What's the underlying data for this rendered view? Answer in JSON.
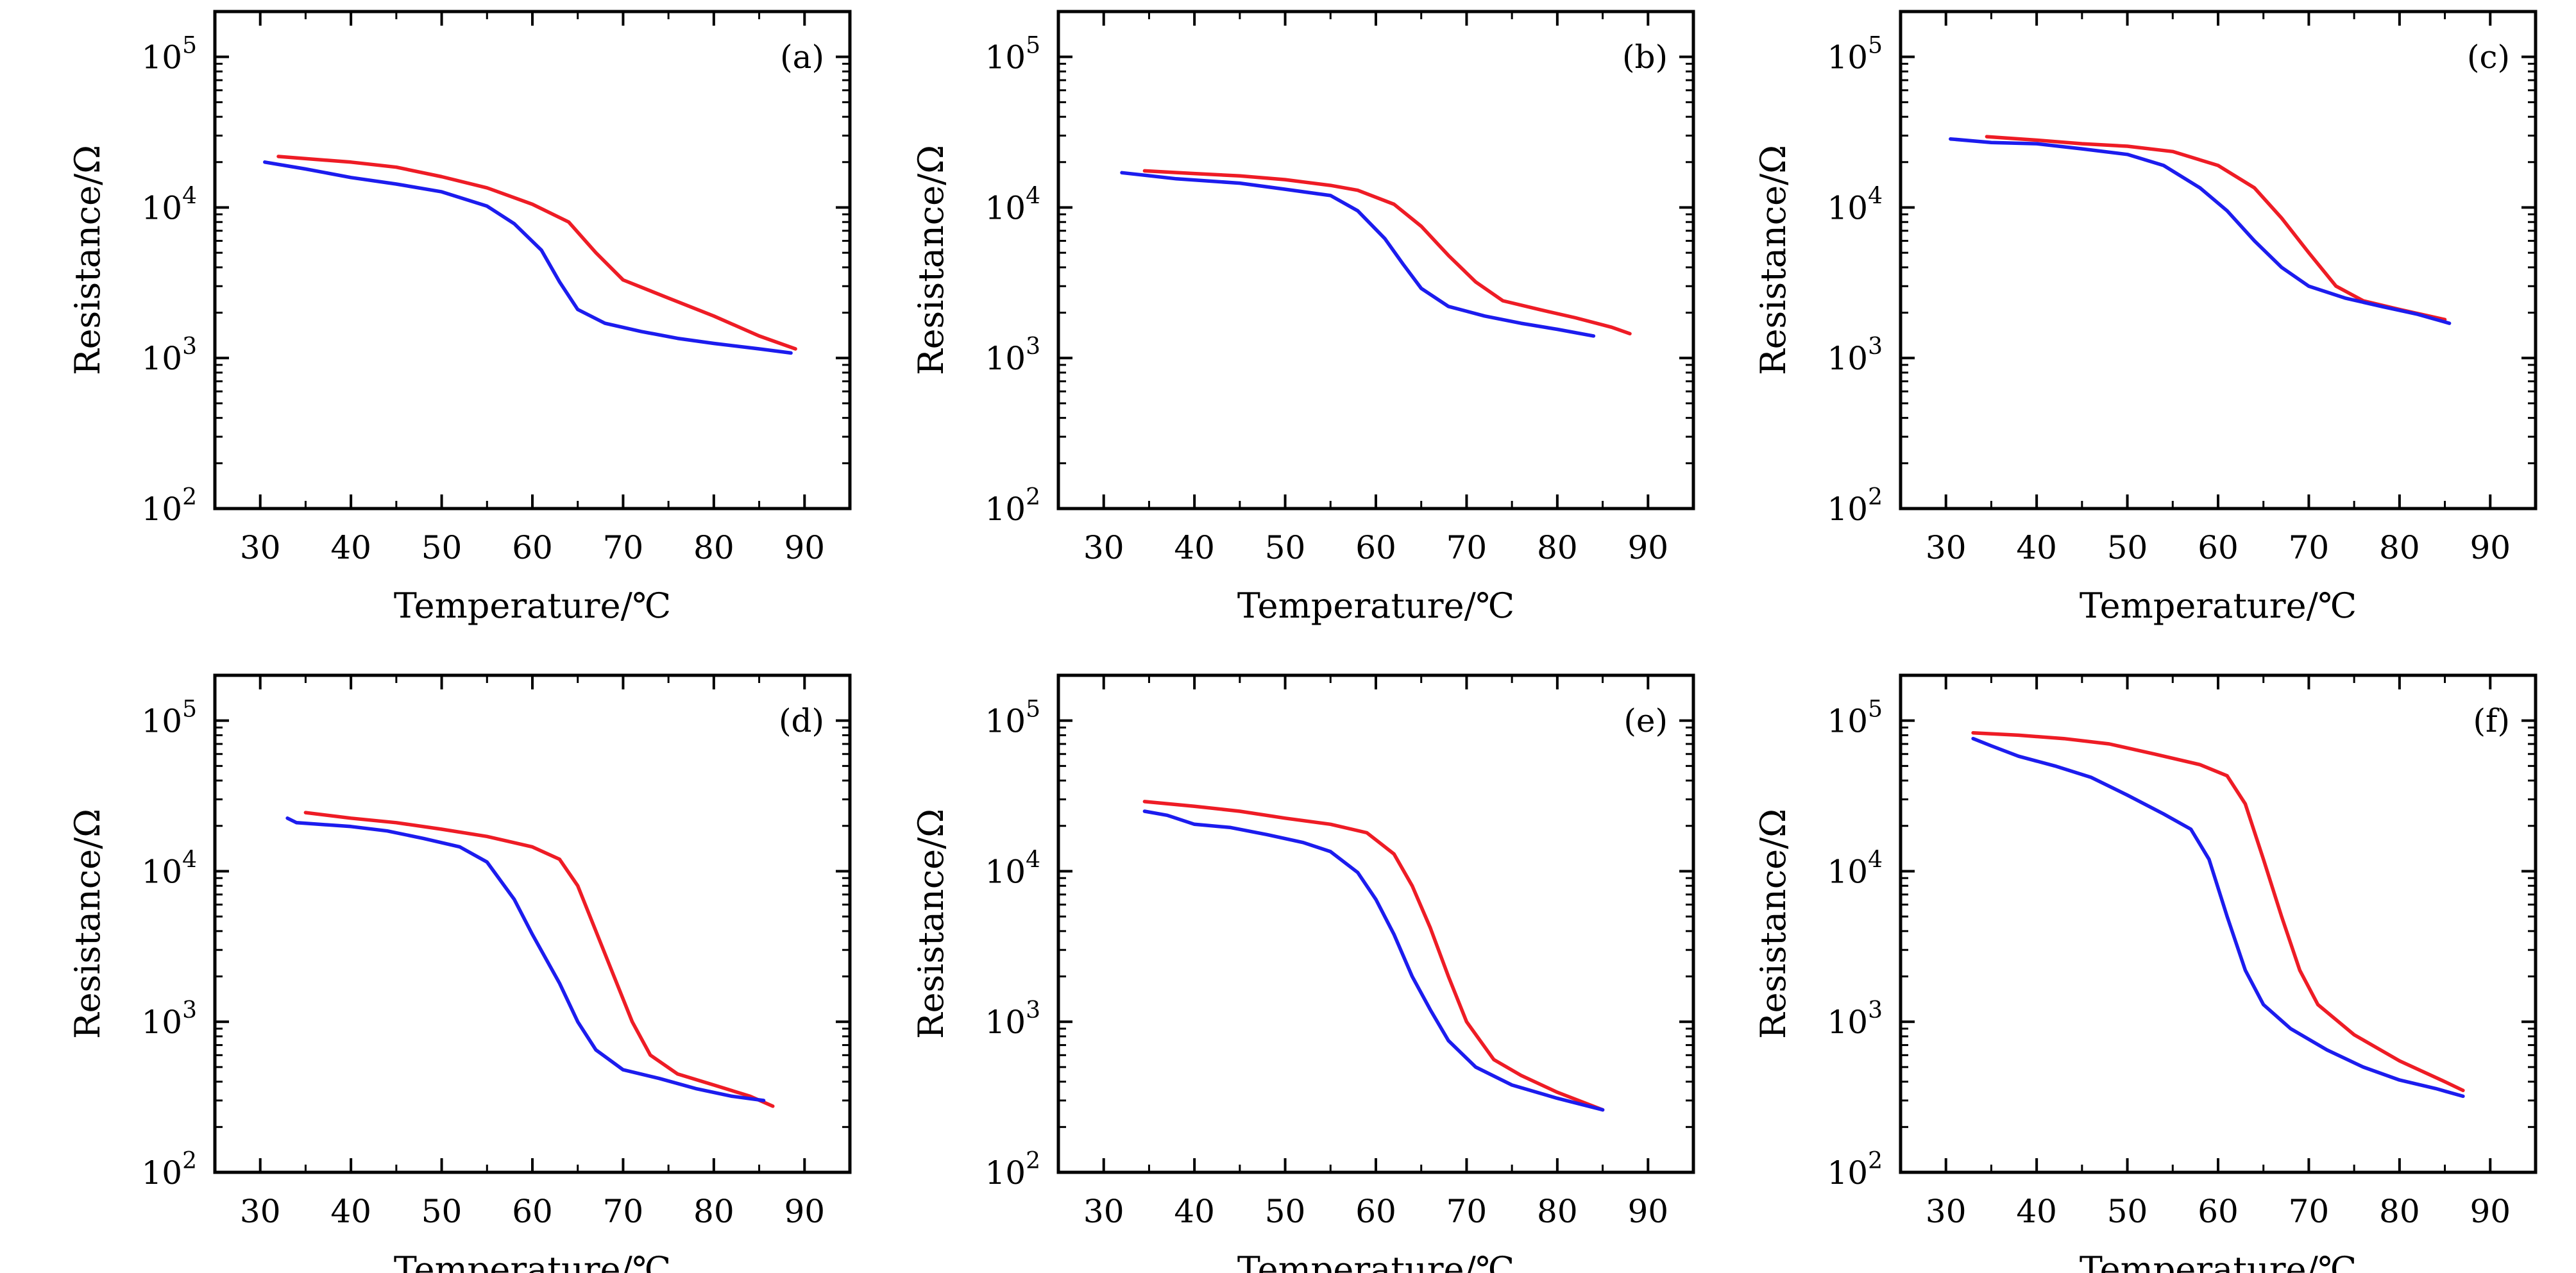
{
  "chart_data": [
    {
      "type": "line",
      "panel_label": "(a)",
      "xlabel": "Temperature/℃",
      "ylabel": "Resistance/Ω",
      "xlim": [
        25,
        95
      ],
      "xticks": [
        30,
        40,
        50,
        60,
        70,
        80,
        90
      ],
      "ylim": [
        100,
        200000
      ],
      "yscale": "log",
      "yticks": [
        {
          "value": 100,
          "base": "10",
          "exp": "2"
        },
        {
          "value": 1000,
          "base": "10",
          "exp": "3"
        },
        {
          "value": 10000,
          "base": "10",
          "exp": "4"
        },
        {
          "value": 100000,
          "base": "10",
          "exp": "5"
        }
      ],
      "grid": false,
      "series": [
        {
          "color": "#ee1c25",
          "points": [
            [
              32,
              21800
            ],
            [
              40,
              20000
            ],
            [
              45,
              18500
            ],
            [
              50,
              16000
            ],
            [
              55,
              13500
            ],
            [
              60,
              10500
            ],
            [
              64,
              8000
            ],
            [
              67,
              5000
            ],
            [
              70,
              3300
            ],
            [
              75,
              2500
            ],
            [
              80,
              1900
            ],
            [
              85,
              1400
            ],
            [
              89,
              1150
            ]
          ]
        },
        {
          "color": "#1c1cee",
          "points": [
            [
              30.5,
              20000
            ],
            [
              35,
              18000
            ],
            [
              40,
              15800
            ],
            [
              45,
              14300
            ],
            [
              50,
              12700
            ],
            [
              55,
              10200
            ],
            [
              58,
              7800
            ],
            [
              61,
              5200
            ],
            [
              63,
              3200
            ],
            [
              65,
              2100
            ],
            [
              68,
              1700
            ],
            [
              72,
              1500
            ],
            [
              76,
              1350
            ],
            [
              80,
              1250
            ],
            [
              85,
              1150
            ],
            [
              88.5,
              1080
            ]
          ]
        }
      ]
    },
    {
      "type": "line",
      "panel_label": "(b)",
      "xlabel": "Temperature/℃",
      "ylabel": "Resistance/Ω",
      "xlim": [
        25,
        95
      ],
      "xticks": [
        30,
        40,
        50,
        60,
        70,
        80,
        90
      ],
      "ylim": [
        100,
        200000
      ],
      "yscale": "log",
      "yticks": [
        {
          "value": 100,
          "base": "10",
          "exp": "2"
        },
        {
          "value": 1000,
          "base": "10",
          "exp": "3"
        },
        {
          "value": 10000,
          "base": "10",
          "exp": "4"
        },
        {
          "value": 100000,
          "base": "10",
          "exp": "5"
        }
      ],
      "grid": false,
      "series": [
        {
          "color": "#ee1c25",
          "points": [
            [
              34.5,
              17500
            ],
            [
              40,
              16800
            ],
            [
              45,
              16200
            ],
            [
              50,
              15300
            ],
            [
              55,
              14000
            ],
            [
              58,
              13000
            ],
            [
              62,
              10500
            ],
            [
              65,
              7500
            ],
            [
              68,
              4800
            ],
            [
              71,
              3200
            ],
            [
              74,
              2400
            ],
            [
              78,
              2100
            ],
            [
              82,
              1850
            ],
            [
              86,
              1600
            ],
            [
              88,
              1450
            ]
          ]
        },
        {
          "color": "#1c1cee",
          "points": [
            [
              32,
              17000
            ],
            [
              38,
              15500
            ],
            [
              45,
              14500
            ],
            [
              50,
              13200
            ],
            [
              55,
              12000
            ],
            [
              58,
              9500
            ],
            [
              61,
              6200
            ],
            [
              63,
              4200
            ],
            [
              65,
              2900
            ],
            [
              68,
              2200
            ],
            [
              72,
              1900
            ],
            [
              76,
              1700
            ],
            [
              80,
              1550
            ],
            [
              84,
              1400
            ]
          ]
        }
      ]
    },
    {
      "type": "line",
      "panel_label": "(c)",
      "xlabel": "Temperature/℃",
      "ylabel": "Resistance/Ω",
      "xlim": [
        25,
        95
      ],
      "xticks": [
        30,
        40,
        50,
        60,
        70,
        80,
        90
      ],
      "ylim": [
        100,
        200000
      ],
      "yscale": "log",
      "yticks": [
        {
          "value": 100,
          "base": "10",
          "exp": "2"
        },
        {
          "value": 1000,
          "base": "10",
          "exp": "3"
        },
        {
          "value": 10000,
          "base": "10",
          "exp": "4"
        },
        {
          "value": 100000,
          "base": "10",
          "exp": "5"
        }
      ],
      "grid": false,
      "series": [
        {
          "color": "#ee1c25",
          "points": [
            [
              34.5,
              29500
            ],
            [
              40,
              28000
            ],
            [
              45,
              26500
            ],
            [
              50,
              25500
            ],
            [
              55,
              23500
            ],
            [
              60,
              19000
            ],
            [
              64,
              13500
            ],
            [
              67,
              8500
            ],
            [
              70,
              5000
            ],
            [
              73,
              3000
            ],
            [
              76,
              2400
            ],
            [
              80,
              2100
            ],
            [
              85,
              1800
            ]
          ]
        },
        {
          "color": "#1c1cee",
          "points": [
            [
              30.5,
              28500
            ],
            [
              35,
              27000
            ],
            [
              40,
              26500
            ],
            [
              45,
              24500
            ],
            [
              50,
              22500
            ],
            [
              54,
              19000
            ],
            [
              58,
              13500
            ],
            [
              61,
              9500
            ],
            [
              64,
              6000
            ],
            [
              67,
              4000
            ],
            [
              70,
              3000
            ],
            [
              74,
              2500
            ],
            [
              78,
              2200
            ],
            [
              82,
              1950
            ],
            [
              85.5,
              1700
            ]
          ]
        }
      ]
    },
    {
      "type": "line",
      "panel_label": "(d)",
      "xlabel": "Temperature/℃",
      "ylabel": "Resistance/Ω",
      "xlim": [
        25,
        95
      ],
      "xticks": [
        30,
        40,
        50,
        60,
        70,
        80,
        90
      ],
      "ylim": [
        100,
        200000
      ],
      "yscale": "log",
      "yticks": [
        {
          "value": 100,
          "base": "10",
          "exp": "2"
        },
        {
          "value": 1000,
          "base": "10",
          "exp": "3"
        },
        {
          "value": 10000,
          "base": "10",
          "exp": "4"
        },
        {
          "value": 100000,
          "base": "10",
          "exp": "5"
        }
      ],
      "grid": false,
      "series": [
        {
          "color": "#ee1c25",
          "points": [
            [
              35,
              24500
            ],
            [
              40,
              22500
            ],
            [
              45,
              21000
            ],
            [
              50,
              19000
            ],
            [
              55,
              17000
            ],
            [
              60,
              14500
            ],
            [
              63,
              12000
            ],
            [
              65,
              8000
            ],
            [
              67,
              4000
            ],
            [
              69,
              2000
            ],
            [
              71,
              1000
            ],
            [
              73,
              600
            ],
            [
              76,
              450
            ],
            [
              80,
              380
            ],
            [
              84,
              320
            ],
            [
              86.5,
              275
            ]
          ]
        },
        {
          "color": "#1c1cee",
          "points": [
            [
              33,
              22500
            ],
            [
              34,
              21000
            ],
            [
              40,
              19800
            ],
            [
              44,
              18500
            ],
            [
              48,
              16500
            ],
            [
              52,
              14500
            ],
            [
              55,
              11500
            ],
            [
              58,
              6500
            ],
            [
              60,
              3800
            ],
            [
              63,
              1800
            ],
            [
              65,
              1000
            ],
            [
              67,
              650
            ],
            [
              70,
              480
            ],
            [
              74,
              420
            ],
            [
              78,
              360
            ],
            [
              82,
              320
            ],
            [
              85.5,
              300
            ]
          ]
        }
      ]
    },
    {
      "type": "line",
      "panel_label": "(e)",
      "xlabel": "Temperature/℃",
      "ylabel": "Resistance/Ω",
      "xlim": [
        25,
        95
      ],
      "xticks": [
        30,
        40,
        50,
        60,
        70,
        80,
        90
      ],
      "ylim": [
        100,
        200000
      ],
      "yscale": "log",
      "yticks": [
        {
          "value": 100,
          "base": "10",
          "exp": "2"
        },
        {
          "value": 1000,
          "base": "10",
          "exp": "3"
        },
        {
          "value": 10000,
          "base": "10",
          "exp": "4"
        },
        {
          "value": 100000,
          "base": "10",
          "exp": "5"
        }
      ],
      "grid": false,
      "series": [
        {
          "color": "#ee1c25",
          "points": [
            [
              34.5,
              29000
            ],
            [
              40,
              27000
            ],
            [
              45,
              25000
            ],
            [
              50,
              22500
            ],
            [
              55,
              20500
            ],
            [
              59,
              18000
            ],
            [
              62,
              13000
            ],
            [
              64,
              8000
            ],
            [
              66,
              4200
            ],
            [
              68,
              2000
            ],
            [
              70,
              1000
            ],
            [
              73,
              560
            ],
            [
              76,
              440
            ],
            [
              80,
              340
            ],
            [
              85,
              260
            ]
          ]
        },
        {
          "color": "#1c1cee",
          "points": [
            [
              34.5,
              25000
            ],
            [
              37,
              23500
            ],
            [
              40,
              20500
            ],
            [
              44,
              19500
            ],
            [
              48,
              17500
            ],
            [
              52,
              15500
            ],
            [
              55,
              13500
            ],
            [
              58,
              9800
            ],
            [
              60,
              6500
            ],
            [
              62,
              3800
            ],
            [
              64,
              2000
            ],
            [
              66,
              1200
            ],
            [
              68,
              750
            ],
            [
              71,
              500
            ],
            [
              75,
              380
            ],
            [
              80,
              310
            ],
            [
              85,
              260
            ]
          ]
        }
      ]
    },
    {
      "type": "line",
      "panel_label": "(f)",
      "xlabel": "Temperature/℃",
      "ylabel": "Resistance/Ω",
      "xlim": [
        25,
        95
      ],
      "xticks": [
        30,
        40,
        50,
        60,
        70,
        80,
        90
      ],
      "ylim": [
        100,
        200000
      ],
      "yscale": "log",
      "yticks": [
        {
          "value": 100,
          "base": "10",
          "exp": "2"
        },
        {
          "value": 1000,
          "base": "10",
          "exp": "3"
        },
        {
          "value": 10000,
          "base": "10",
          "exp": "4"
        },
        {
          "value": 100000,
          "base": "10",
          "exp": "5"
        }
      ],
      "grid": false,
      "series": [
        {
          "color": "#ee1c25",
          "points": [
            [
              33,
              83000
            ],
            [
              38,
              80000
            ],
            [
              43,
              76000
            ],
            [
              48,
              70000
            ],
            [
              53,
              60000
            ],
            [
              58,
              51000
            ],
            [
              61,
              43000
            ],
            [
              63,
              28000
            ],
            [
              65,
              12000
            ],
            [
              67,
              5000
            ],
            [
              69,
              2200
            ],
            [
              71,
              1300
            ],
            [
              75,
              820
            ],
            [
              80,
              550
            ],
            [
              85,
              400
            ],
            [
              87,
              350
            ]
          ]
        },
        {
          "color": "#1c1cee",
          "points": [
            [
              33,
              76000
            ],
            [
              35,
              68000
            ],
            [
              38,
              58000
            ],
            [
              42,
              50000
            ],
            [
              46,
              42000
            ],
            [
              50,
              32000
            ],
            [
              54,
              24000
            ],
            [
              57,
              19000
            ],
            [
              59,
              12000
            ],
            [
              61,
              5000
            ],
            [
              63,
              2200
            ],
            [
              65,
              1300
            ],
            [
              68,
              900
            ],
            [
              72,
              650
            ],
            [
              76,
              500
            ],
            [
              80,
              410
            ],
            [
              84,
              360
            ],
            [
              87,
              320
            ]
          ]
        }
      ]
    }
  ]
}
